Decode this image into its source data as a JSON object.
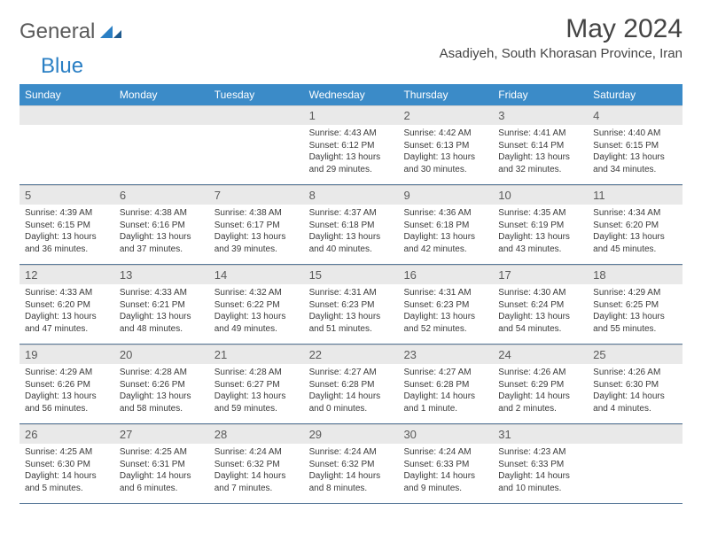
{
  "logo": {
    "text1": "General",
    "text2": "Blue",
    "color1": "#5a5a5a",
    "color2": "#2a7fc4",
    "tri_color": "#2a7fc4"
  },
  "title": "May 2024",
  "location": "Asadiyeh, South Khorasan Province, Iran",
  "header_bg": "#3b8bc8",
  "daynum_bg": "#e9e9e9",
  "rule_color": "#5a7a9a",
  "weekdays": [
    "Sunday",
    "Monday",
    "Tuesday",
    "Wednesday",
    "Thursday",
    "Friday",
    "Saturday"
  ],
  "weeks": [
    {
      "nums": [
        "",
        "",
        "",
        "1",
        "2",
        "3",
        "4"
      ],
      "cells": [
        {
          "sunrise": "",
          "sunset": "",
          "daylight": ""
        },
        {
          "sunrise": "",
          "sunset": "",
          "daylight": ""
        },
        {
          "sunrise": "",
          "sunset": "",
          "daylight": ""
        },
        {
          "sunrise": "Sunrise: 4:43 AM",
          "sunset": "Sunset: 6:12 PM",
          "daylight": "Daylight: 13 hours and 29 minutes."
        },
        {
          "sunrise": "Sunrise: 4:42 AM",
          "sunset": "Sunset: 6:13 PM",
          "daylight": "Daylight: 13 hours and 30 minutes."
        },
        {
          "sunrise": "Sunrise: 4:41 AM",
          "sunset": "Sunset: 6:14 PM",
          "daylight": "Daylight: 13 hours and 32 minutes."
        },
        {
          "sunrise": "Sunrise: 4:40 AM",
          "sunset": "Sunset: 6:15 PM",
          "daylight": "Daylight: 13 hours and 34 minutes."
        }
      ]
    },
    {
      "nums": [
        "5",
        "6",
        "7",
        "8",
        "9",
        "10",
        "11"
      ],
      "cells": [
        {
          "sunrise": "Sunrise: 4:39 AM",
          "sunset": "Sunset: 6:15 PM",
          "daylight": "Daylight: 13 hours and 36 minutes."
        },
        {
          "sunrise": "Sunrise: 4:38 AM",
          "sunset": "Sunset: 6:16 PM",
          "daylight": "Daylight: 13 hours and 37 minutes."
        },
        {
          "sunrise": "Sunrise: 4:38 AM",
          "sunset": "Sunset: 6:17 PM",
          "daylight": "Daylight: 13 hours and 39 minutes."
        },
        {
          "sunrise": "Sunrise: 4:37 AM",
          "sunset": "Sunset: 6:18 PM",
          "daylight": "Daylight: 13 hours and 40 minutes."
        },
        {
          "sunrise": "Sunrise: 4:36 AM",
          "sunset": "Sunset: 6:18 PM",
          "daylight": "Daylight: 13 hours and 42 minutes."
        },
        {
          "sunrise": "Sunrise: 4:35 AM",
          "sunset": "Sunset: 6:19 PM",
          "daylight": "Daylight: 13 hours and 43 minutes."
        },
        {
          "sunrise": "Sunrise: 4:34 AM",
          "sunset": "Sunset: 6:20 PM",
          "daylight": "Daylight: 13 hours and 45 minutes."
        }
      ]
    },
    {
      "nums": [
        "12",
        "13",
        "14",
        "15",
        "16",
        "17",
        "18"
      ],
      "cells": [
        {
          "sunrise": "Sunrise: 4:33 AM",
          "sunset": "Sunset: 6:20 PM",
          "daylight": "Daylight: 13 hours and 47 minutes."
        },
        {
          "sunrise": "Sunrise: 4:33 AM",
          "sunset": "Sunset: 6:21 PM",
          "daylight": "Daylight: 13 hours and 48 minutes."
        },
        {
          "sunrise": "Sunrise: 4:32 AM",
          "sunset": "Sunset: 6:22 PM",
          "daylight": "Daylight: 13 hours and 49 minutes."
        },
        {
          "sunrise": "Sunrise: 4:31 AM",
          "sunset": "Sunset: 6:23 PM",
          "daylight": "Daylight: 13 hours and 51 minutes."
        },
        {
          "sunrise": "Sunrise: 4:31 AM",
          "sunset": "Sunset: 6:23 PM",
          "daylight": "Daylight: 13 hours and 52 minutes."
        },
        {
          "sunrise": "Sunrise: 4:30 AM",
          "sunset": "Sunset: 6:24 PM",
          "daylight": "Daylight: 13 hours and 54 minutes."
        },
        {
          "sunrise": "Sunrise: 4:29 AM",
          "sunset": "Sunset: 6:25 PM",
          "daylight": "Daylight: 13 hours and 55 minutes."
        }
      ]
    },
    {
      "nums": [
        "19",
        "20",
        "21",
        "22",
        "23",
        "24",
        "25"
      ],
      "cells": [
        {
          "sunrise": "Sunrise: 4:29 AM",
          "sunset": "Sunset: 6:26 PM",
          "daylight": "Daylight: 13 hours and 56 minutes."
        },
        {
          "sunrise": "Sunrise: 4:28 AM",
          "sunset": "Sunset: 6:26 PM",
          "daylight": "Daylight: 13 hours and 58 minutes."
        },
        {
          "sunrise": "Sunrise: 4:28 AM",
          "sunset": "Sunset: 6:27 PM",
          "daylight": "Daylight: 13 hours and 59 minutes."
        },
        {
          "sunrise": "Sunrise: 4:27 AM",
          "sunset": "Sunset: 6:28 PM",
          "daylight": "Daylight: 14 hours and 0 minutes."
        },
        {
          "sunrise": "Sunrise: 4:27 AM",
          "sunset": "Sunset: 6:28 PM",
          "daylight": "Daylight: 14 hours and 1 minute."
        },
        {
          "sunrise": "Sunrise: 4:26 AM",
          "sunset": "Sunset: 6:29 PM",
          "daylight": "Daylight: 14 hours and 2 minutes."
        },
        {
          "sunrise": "Sunrise: 4:26 AM",
          "sunset": "Sunset: 6:30 PM",
          "daylight": "Daylight: 14 hours and 4 minutes."
        }
      ]
    },
    {
      "nums": [
        "26",
        "27",
        "28",
        "29",
        "30",
        "31",
        ""
      ],
      "cells": [
        {
          "sunrise": "Sunrise: 4:25 AM",
          "sunset": "Sunset: 6:30 PM",
          "daylight": "Daylight: 14 hours and 5 minutes."
        },
        {
          "sunrise": "Sunrise: 4:25 AM",
          "sunset": "Sunset: 6:31 PM",
          "daylight": "Daylight: 14 hours and 6 minutes."
        },
        {
          "sunrise": "Sunrise: 4:24 AM",
          "sunset": "Sunset: 6:32 PM",
          "daylight": "Daylight: 14 hours and 7 minutes."
        },
        {
          "sunrise": "Sunrise: 4:24 AM",
          "sunset": "Sunset: 6:32 PM",
          "daylight": "Daylight: 14 hours and 8 minutes."
        },
        {
          "sunrise": "Sunrise: 4:24 AM",
          "sunset": "Sunset: 6:33 PM",
          "daylight": "Daylight: 14 hours and 9 minutes."
        },
        {
          "sunrise": "Sunrise: 4:23 AM",
          "sunset": "Sunset: 6:33 PM",
          "daylight": "Daylight: 14 hours and 10 minutes."
        },
        {
          "sunrise": "",
          "sunset": "",
          "daylight": ""
        }
      ]
    }
  ]
}
